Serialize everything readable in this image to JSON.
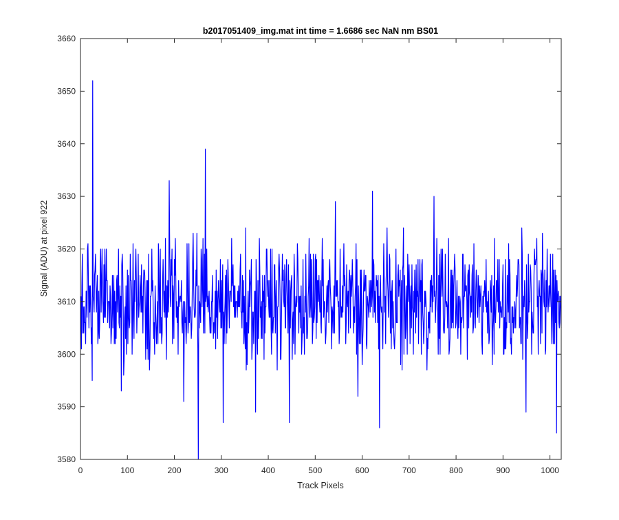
{
  "chart_data": {
    "type": "line",
    "title": "b2017051409_img.mat int time = 1.6686 sec  NaN nm BS01",
    "xlabel": "Track Pixels",
    "ylabel": "Signal (ADU) at pixel 922",
    "xlim": [
      0,
      1024
    ],
    "ylim": [
      3580,
      3660
    ],
    "xticks": [
      0,
      100,
      200,
      300,
      400,
      500,
      600,
      700,
      800,
      900,
      1000
    ],
    "yticks": [
      3580,
      3590,
      3600,
      3610,
      3620,
      3630,
      3640,
      3650,
      3660
    ],
    "grid": false,
    "series_color": "#0000ff",
    "notable_points": [
      {
        "x": 25,
        "y": 3652
      },
      {
        "x": 24,
        "y": 3595
      },
      {
        "x": 86,
        "y": 3593
      },
      {
        "x": 188,
        "y": 3633
      },
      {
        "x": 219,
        "y": 3591
      },
      {
        "x": 250,
        "y": 3580
      },
      {
        "x": 265,
        "y": 3639
      },
      {
        "x": 303,
        "y": 3587
      },
      {
        "x": 372,
        "y": 3589
      },
      {
        "x": 444,
        "y": 3587
      },
      {
        "x": 542,
        "y": 3629
      },
      {
        "x": 590,
        "y": 3592
      },
      {
        "x": 621,
        "y": 3631
      },
      {
        "x": 636,
        "y": 3586
      },
      {
        "x": 752,
        "y": 3630
      },
      {
        "x": 948,
        "y": 3589
      },
      {
        "x": 1013,
        "y": 3585
      }
    ],
    "series": [
      {
        "n_points": 1024,
        "baseline": 3610,
        "typical_range": [
          3596,
          3624
        ]
      }
    ]
  }
}
